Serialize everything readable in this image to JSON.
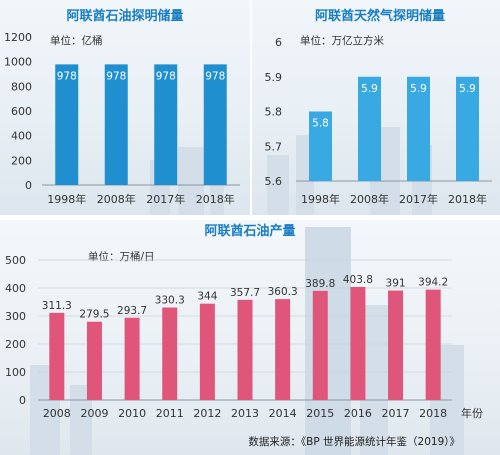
{
  "colors": {
    "title": "#1a7ec4",
    "oil_bar": "#1f8fd0",
    "gas_bar": "#38a9e2",
    "prod_bar": "#e0567a",
    "label_on_bar": "#ffffff",
    "axis_text": "#333333",
    "grid": "#c9d3dc"
  },
  "chart_data": [
    {
      "id": "oil",
      "type": "bar",
      "title": "阿联酋石油探明储量",
      "unit": "单位：亿桶",
      "categories": [
        "1998年",
        "2008年",
        "2017年",
        "2018年"
      ],
      "values": [
        978,
        978,
        978,
        978
      ],
      "value_labels": [
        "978",
        "978",
        "978",
        "978"
      ],
      "ylim": [
        0,
        1200
      ],
      "yticks": [
        0,
        200,
        400,
        600,
        800,
        1000,
        1200
      ],
      "ytick_labels": [
        "0",
        "200",
        "400",
        "600",
        "800",
        "1000",
        "1200"
      ],
      "label_position": "inside-top",
      "grid": false
    },
    {
      "id": "gas",
      "type": "bar",
      "title": "阿联酋天然气探明储量",
      "unit": "单位：万亿立方米",
      "categories": [
        "1998年",
        "2008年",
        "2017年",
        "2018年"
      ],
      "values": [
        5.8,
        5.9,
        5.9,
        5.9
      ],
      "value_labels": [
        "5.8",
        "5.9",
        "5.9",
        "5.9"
      ],
      "ylim": [
        5.6,
        6
      ],
      "yticks": [
        5.6,
        5.7,
        5.8,
        5.9,
        6
      ],
      "ytick_labels": [
        "5.6",
        "5.7",
        "5.8",
        "5.9",
        "6"
      ],
      "label_position": "inside-top",
      "grid": false
    },
    {
      "id": "prod",
      "type": "bar",
      "title": "阿联酋石油产量",
      "unit": "单位：万桶/日",
      "xlabel": "年份",
      "categories": [
        "2008",
        "2009",
        "2010",
        "2011",
        "2012",
        "2013",
        "2014",
        "2015",
        "2016",
        "2017",
        "2018"
      ],
      "values": [
        311.3,
        279.5,
        293.7,
        330.3,
        344,
        357.7,
        360.3,
        389.8,
        403.8,
        391,
        394.2
      ],
      "value_labels": [
        "311.3",
        "279.5",
        "293.7",
        "330.3",
        "344",
        "357.7",
        "360.3",
        "389.8",
        "403.8",
        "391",
        "394.2"
      ],
      "ylim": [
        0,
        500
      ],
      "yticks": [
        0,
        100,
        200,
        300,
        400,
        500
      ],
      "ytick_labels": [
        "0",
        "100",
        "200",
        "300",
        "400",
        "500"
      ],
      "label_position": "above",
      "grid": true
    }
  ],
  "source": "数据来源：《BP 世界能源统计年鉴（2019）》"
}
